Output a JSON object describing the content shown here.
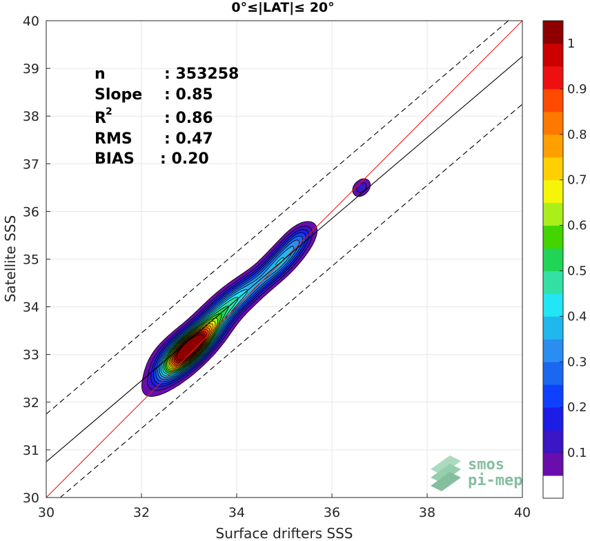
{
  "chart_data": {
    "type": "heatmap",
    "title": "0°≤|LAT|≤ 20°",
    "xlabel": "Surface drifters SSS",
    "ylabel": "Satellite SSS",
    "xlim": [
      30,
      40
    ],
    "ylim": [
      30,
      40
    ],
    "xticks": [
      "30",
      "32",
      "34",
      "36",
      "38",
      "40"
    ],
    "yticks": [
      "30",
      "31",
      "32",
      "33",
      "34",
      "35",
      "36",
      "37",
      "38",
      "39",
      "40"
    ],
    "grid": true,
    "stats": {
      "n_label": "n",
      "n_value": ": 353258",
      "slope_label": "Slope",
      "slope_value": ": 0.85",
      "r2_label": "R",
      "r2_sup": "2",
      "r2_value": ": 0.86",
      "rms_label": "RMS",
      "rms_value": ": 0.47",
      "bias_label": "BIAS",
      "bias_value": ": 0.20"
    },
    "lines": [
      {
        "name": "one-to-one",
        "color": "#e41a1c",
        "x": [
          30,
          40
        ],
        "y": [
          30,
          40
        ]
      },
      {
        "name": "regression",
        "color": "#000000",
        "x": [
          30,
          40
        ],
        "y": [
          30.75,
          39.25
        ]
      },
      {
        "name": "upper-bound",
        "color": "#000000",
        "dash": true,
        "x": [
          30,
          40
        ],
        "y": [
          31.75,
          40.25
        ]
      },
      {
        "name": "lower-bound",
        "color": "#000000",
        "dash": true,
        "x": [
          30,
          40
        ],
        "y": [
          29.75,
          38.25
        ]
      }
    ],
    "density_blobs": [
      {
        "cx": 33.05,
        "cy": 33.15,
        "sx": 0.42,
        "sy": 0.42,
        "rho": 0.82,
        "amp": 1.0
      },
      {
        "cx": 32.85,
        "cy": 33.1,
        "sx": 0.35,
        "sy": 0.28,
        "rho": 0.6,
        "amp": 0.3
      },
      {
        "cx": 33.9,
        "cy": 34.1,
        "sx": 0.42,
        "sy": 0.36,
        "rho": 0.8,
        "amp": 0.38
      },
      {
        "cx": 35.0,
        "cy": 35.05,
        "sx": 0.32,
        "sy": 0.32,
        "rho": 0.75,
        "amp": 0.33
      },
      {
        "cx": 34.55,
        "cy": 34.6,
        "sx": 0.35,
        "sy": 0.3,
        "rho": 0.8,
        "amp": 0.15
      },
      {
        "cx": 35.3,
        "cy": 35.45,
        "sx": 0.2,
        "sy": 0.2,
        "rho": 0.5,
        "amp": 0.12
      },
      {
        "cx": 36.62,
        "cy": 36.5,
        "sx": 0.13,
        "sy": 0.13,
        "rho": 0.3,
        "amp": 0.14
      }
    ],
    "colorbar": {
      "ticks": [
        "0.1",
        "0.2",
        "0.3",
        "0.4",
        "0.5",
        "0.6",
        "0.7",
        "0.8",
        "0.9",
        "1"
      ],
      "levels": [
        0.05,
        0.1,
        0.15,
        0.2,
        0.25,
        0.3,
        0.35,
        0.4,
        0.45,
        0.5,
        0.55,
        0.6,
        0.65,
        0.7,
        0.75,
        0.8,
        0.85,
        0.9,
        0.95,
        1.0
      ],
      "colors": [
        "#ffffff",
        "#6a0dad",
        "#3a16c4",
        "#1d1de6",
        "#1040ff",
        "#1a68f0",
        "#2a8ef0",
        "#22b6ee",
        "#22e6f4",
        "#33e0a4",
        "#22d456",
        "#44d400",
        "#aaee1a",
        "#f5f50a",
        "#ffd000",
        "#ffa000",
        "#ff7800",
        "#ff4a00",
        "#ee1010",
        "#cc0000",
        "#8e0000"
      ]
    }
  },
  "watermark": {
    "line1": "smos",
    "line2": "pi-mep"
  }
}
